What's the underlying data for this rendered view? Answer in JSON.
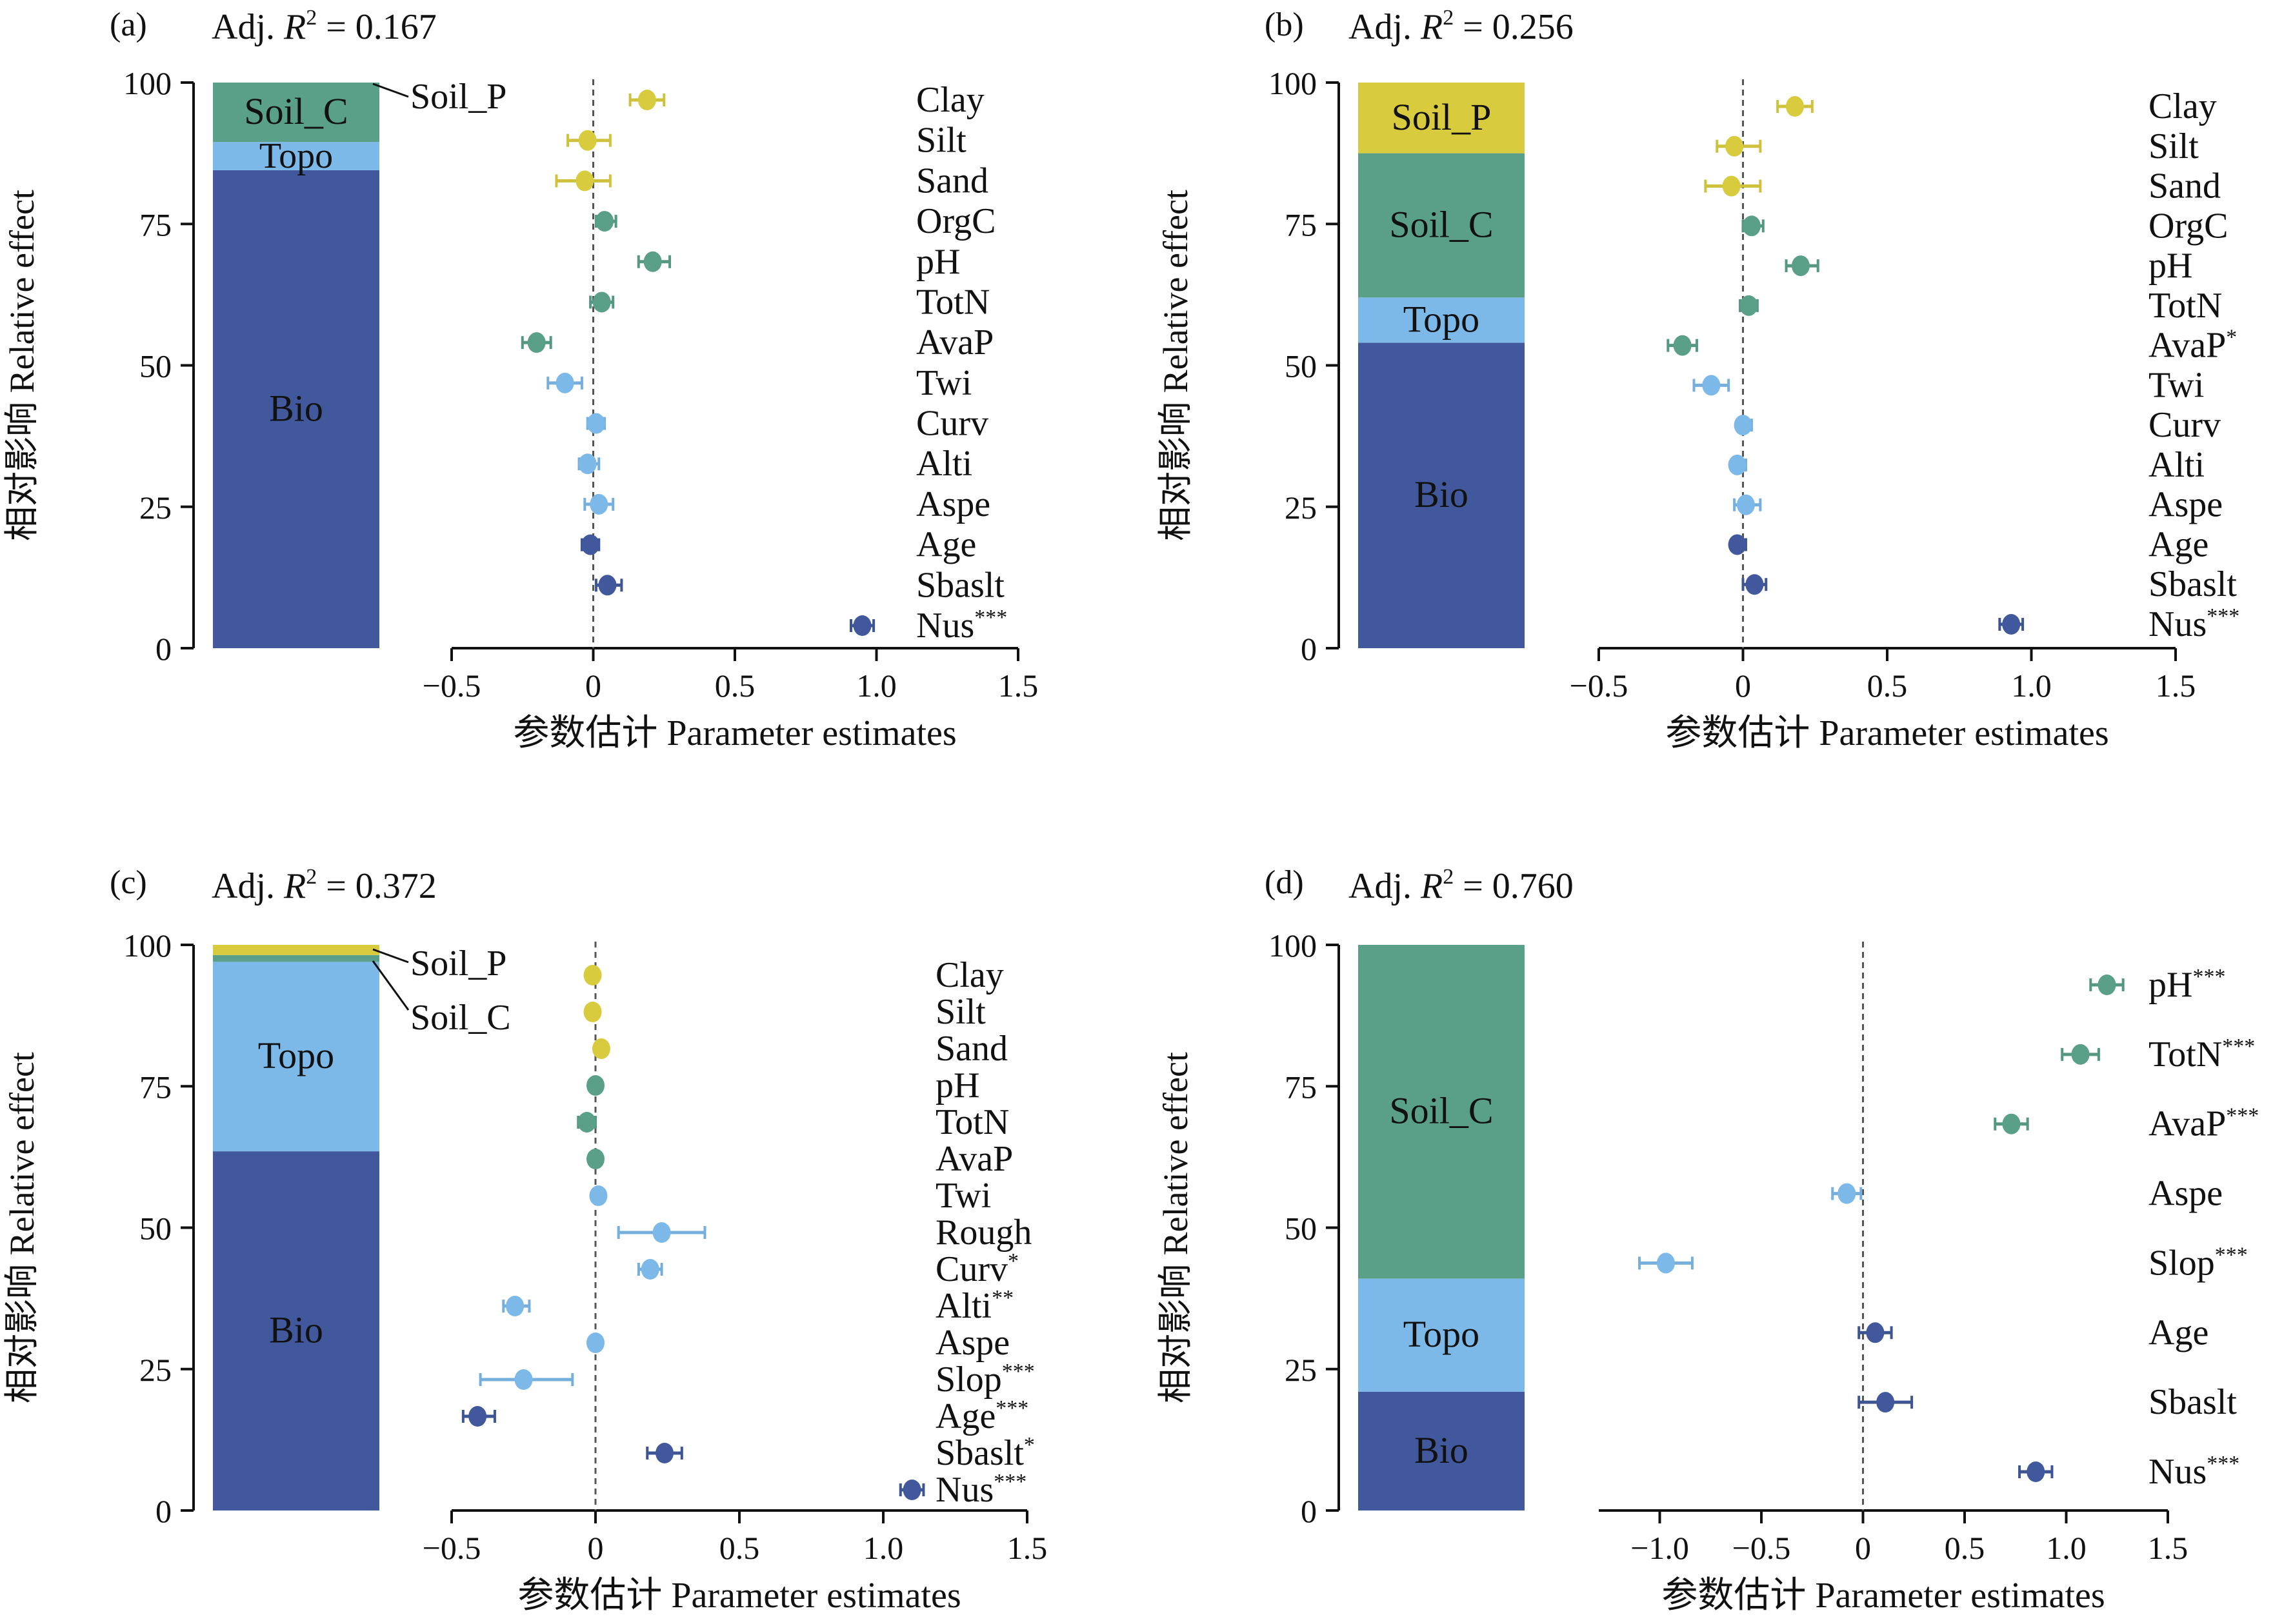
{
  "colors": {
    "Bio": "#41599c",
    "Topo": "#7cb8e8",
    "Soil_C": "#5a9f88",
    "Soil_P": "#d9cb3e",
    "axis": "#111111"
  },
  "chart_data": [
    {
      "type": "stacked-bar + dot-and-whisker",
      "panel_label": "(a)",
      "r2_label": {
        "prefix": "Adj. ",
        "symbol": "R",
        "sup": "2",
        "value": " = 0.167"
      },
      "ylabel": "相对影响 Relative effect",
      "xlabel": "参数估计 Parameter estimates",
      "ylim": [
        0,
        100
      ],
      "yticks": [
        "0",
        "25",
        "50",
        "75",
        "100"
      ],
      "xlim": [
        -0.5,
        1.5
      ],
      "xticks": [
        {
          "value": -0.5,
          "label": "−0.5"
        },
        {
          "value": 0,
          "label": "0"
        },
        {
          "value": 0.5,
          "label": "0.5"
        },
        {
          "value": 1,
          "label": "1.0"
        },
        {
          "value": 1.5,
          "label": "1.5"
        }
      ],
      "stack": [
        {
          "group": "Bio",
          "value": 84.5,
          "label": "Bio"
        },
        {
          "group": "Topo",
          "value": 5,
          "label": "Topo"
        },
        {
          "group": "Soil_C",
          "value": 10.5,
          "label": "Soil_C"
        },
        {
          "group": "Soil_P",
          "value": 0,
          "label": "Soil_P",
          "callout": true
        }
      ],
      "estimates": [
        {
          "label": "Clay",
          "sig": "",
          "group": "Soil_P",
          "value": 0.19,
          "lo": 0.13,
          "hi": 0.25
        },
        {
          "label": "Silt",
          "sig": "",
          "group": "Soil_P",
          "value": -0.02,
          "lo": -0.09,
          "hi": 0.06
        },
        {
          "label": "Sand",
          "sig": "",
          "group": "Soil_P",
          "value": -0.03,
          "lo": -0.13,
          "hi": 0.06
        },
        {
          "label": "OrgC",
          "sig": "",
          "group": "Soil_C",
          "value": 0.04,
          "lo": 0.01,
          "hi": 0.08
        },
        {
          "label": "pH",
          "sig": "",
          "group": "Soil_C",
          "value": 0.21,
          "lo": 0.16,
          "hi": 0.27
        },
        {
          "label": "TotN",
          "sig": "",
          "group": "Soil_C",
          "value": 0.03,
          "lo": -0.01,
          "hi": 0.07
        },
        {
          "label": "AvaP",
          "sig": "",
          "group": "Soil_C",
          "value": -0.2,
          "lo": -0.25,
          "hi": -0.15
        },
        {
          "label": "Twi",
          "sig": "",
          "group": "Topo",
          "value": -0.1,
          "lo": -0.16,
          "hi": -0.04
        },
        {
          "label": "Curv",
          "sig": "",
          "group": "Topo",
          "value": 0.01,
          "lo": -0.02,
          "hi": 0.04
        },
        {
          "label": "Alti",
          "sig": "",
          "group": "Topo",
          "value": -0.02,
          "lo": -0.05,
          "hi": 0.02
        },
        {
          "label": "Aspe",
          "sig": "",
          "group": "Topo",
          "value": 0.02,
          "lo": -0.03,
          "hi": 0.07
        },
        {
          "label": "Age",
          "sig": "",
          "group": "Bio",
          "value": -0.01,
          "lo": -0.04,
          "hi": 0.02
        },
        {
          "label": "Sbaslt",
          "sig": "",
          "group": "Bio",
          "value": 0.05,
          "lo": 0.01,
          "hi": 0.1
        },
        {
          "label": "Nus",
          "sig": "***",
          "group": "Bio",
          "value": 0.95,
          "lo": 0.91,
          "hi": 0.99
        }
      ]
    },
    {
      "type": "stacked-bar + dot-and-whisker",
      "panel_label": "(b)",
      "r2_label": {
        "prefix": "Adj. ",
        "symbol": "R",
        "sup": "2",
        "value": " = 0.256"
      },
      "ylabel": "相对影响 Relative effect",
      "xlabel": "参数估计 Parameter estimates",
      "ylim": [
        0,
        100
      ],
      "yticks": [
        "0",
        "25",
        "50",
        "75",
        "100"
      ],
      "xlim": [
        -0.5,
        1.5
      ],
      "xticks": [
        {
          "value": -0.5,
          "label": "−0.5"
        },
        {
          "value": 0,
          "label": "0"
        },
        {
          "value": 0.5,
          "label": "0.5"
        },
        {
          "value": 1,
          "label": "1.0"
        },
        {
          "value": 1.5,
          "label": "1.5"
        }
      ],
      "stack": [
        {
          "group": "Bio",
          "value": 54,
          "label": "Bio"
        },
        {
          "group": "Topo",
          "value": 8,
          "label": "Topo"
        },
        {
          "group": "Soil_C",
          "value": 25.5,
          "label": "Soil_C"
        },
        {
          "group": "Soil_P",
          "value": 12.5,
          "label": "Soil_P"
        }
      ],
      "estimates": [
        {
          "label": "Clay",
          "sig": "",
          "group": "Soil_P",
          "value": 0.18,
          "lo": 0.12,
          "hi": 0.24
        },
        {
          "label": "Silt",
          "sig": "",
          "group": "Soil_P",
          "value": -0.03,
          "lo": -0.09,
          "hi": 0.06
        },
        {
          "label": "Sand",
          "sig": "",
          "group": "Soil_P",
          "value": -0.04,
          "lo": -0.13,
          "hi": 0.06
        },
        {
          "label": "OrgC",
          "sig": "",
          "group": "Soil_C",
          "value": 0.03,
          "lo": 0.0,
          "hi": 0.07
        },
        {
          "label": "pH",
          "sig": "",
          "group": "Soil_C",
          "value": 0.2,
          "lo": 0.15,
          "hi": 0.26
        },
        {
          "label": "TotN",
          "sig": "",
          "group": "Soil_C",
          "value": 0.02,
          "lo": -0.01,
          "hi": 0.05
        },
        {
          "label": "AvaP",
          "sig": "*",
          "group": "Soil_C",
          "value": -0.21,
          "lo": -0.26,
          "hi": -0.16
        },
        {
          "label": "Twi",
          "sig": "",
          "group": "Topo",
          "value": -0.11,
          "lo": -0.17,
          "hi": -0.05
        },
        {
          "label": "Curv",
          "sig": "",
          "group": "Topo",
          "value": 0.0,
          "lo": -0.02,
          "hi": 0.03
        },
        {
          "label": "Alti",
          "sig": "",
          "group": "Topo",
          "value": -0.02,
          "lo": -0.04,
          "hi": 0.01
        },
        {
          "label": "Aspe",
          "sig": "",
          "group": "Topo",
          "value": 0.01,
          "lo": -0.03,
          "hi": 0.06
        },
        {
          "label": "Age",
          "sig": "",
          "group": "Bio",
          "value": -0.02,
          "lo": -0.04,
          "hi": 0.01
        },
        {
          "label": "Sbaslt",
          "sig": "",
          "group": "Bio",
          "value": 0.04,
          "lo": 0.0,
          "hi": 0.08
        },
        {
          "label": "Nus",
          "sig": "***",
          "group": "Bio",
          "value": 0.93,
          "lo": 0.89,
          "hi": 0.97
        }
      ]
    },
    {
      "type": "stacked-bar + dot-and-whisker",
      "panel_label": "(c)",
      "r2_label": {
        "prefix": "Adj. ",
        "symbol": "R",
        "sup": "2",
        "value": " = 0.372"
      },
      "ylabel": "相对影响 Relative effect",
      "xlabel": "参数估计 Parameter estimates",
      "ylim": [
        0,
        100
      ],
      "yticks": [
        "0",
        "25",
        "50",
        "75",
        "100"
      ],
      "xlim": [
        -0.5,
        1.5
      ],
      "xticks": [
        {
          "value": -0.5,
          "label": "−0.5"
        },
        {
          "value": 0,
          "label": "0"
        },
        {
          "value": 0.5,
          "label": "0.5"
        },
        {
          "value": 1,
          "label": "1.0"
        },
        {
          "value": 1.5,
          "label": "1.5"
        }
      ],
      "stack": [
        {
          "group": "Bio",
          "value": 63.5,
          "label": "Bio"
        },
        {
          "group": "Topo",
          "value": 33.5,
          "label": "Topo"
        },
        {
          "group": "Soil_C",
          "value": 1.2,
          "label": "Soil_C",
          "callout": true
        },
        {
          "group": "Soil_P",
          "value": 1.8,
          "label": "Soil_P",
          "callout": true
        }
      ],
      "estimates": [
        {
          "label": "Clay",
          "sig": "",
          "group": "Soil_P",
          "value": -0.01,
          "lo": -0.03,
          "hi": 0.01
        },
        {
          "label": "Silt",
          "sig": "",
          "group": "Soil_P",
          "value": -0.01,
          "lo": -0.03,
          "hi": 0.01
        },
        {
          "label": "Sand",
          "sig": "",
          "group": "Soil_P",
          "value": 0.02,
          "lo": 0.0,
          "hi": 0.04
        },
        {
          "label": "pH",
          "sig": "",
          "group": "Soil_C",
          "value": 0.0,
          "lo": -0.02,
          "hi": 0.02
        },
        {
          "label": "TotN",
          "sig": "",
          "group": "Soil_C",
          "value": -0.03,
          "lo": -0.06,
          "hi": 0.0
        },
        {
          "label": "AvaP",
          "sig": "",
          "group": "Soil_C",
          "value": 0.0,
          "lo": -0.02,
          "hi": 0.02
        },
        {
          "label": "Twi",
          "sig": "",
          "group": "Topo",
          "value": 0.01,
          "lo": -0.01,
          "hi": 0.03
        },
        {
          "label": "Rough",
          "sig": "",
          "group": "Topo",
          "value": 0.23,
          "lo": 0.08,
          "hi": 0.38
        },
        {
          "label": "Curv",
          "sig": "*",
          "group": "Topo",
          "value": 0.19,
          "lo": 0.15,
          "hi": 0.23
        },
        {
          "label": "Alti",
          "sig": "**",
          "group": "Topo",
          "value": -0.28,
          "lo": -0.32,
          "hi": -0.23
        },
        {
          "label": "Aspe",
          "sig": "",
          "group": "Topo",
          "value": 0.0,
          "lo": -0.02,
          "hi": 0.02
        },
        {
          "label": "Slop",
          "sig": "***",
          "group": "Topo",
          "value": -0.25,
          "lo": -0.4,
          "hi": -0.08
        },
        {
          "label": "Age",
          "sig": "***",
          "group": "Bio",
          "value": -0.41,
          "lo": -0.46,
          "hi": -0.35
        },
        {
          "label": "Sbaslt",
          "sig": "*",
          "group": "Bio",
          "value": 0.24,
          "lo": 0.18,
          "hi": 0.3
        },
        {
          "label": "Nus",
          "sig": "***",
          "group": "Bio",
          "value": 1.1,
          "lo": 1.06,
          "hi": 1.14
        }
      ]
    },
    {
      "type": "stacked-bar + dot-and-whisker",
      "panel_label": "(d)",
      "r2_label": {
        "prefix": "Adj. ",
        "symbol": "R",
        "sup": "2",
        "value": " = 0.760"
      },
      "ylabel": "相对影响 Relative effect",
      "xlabel": "参数估计 Parameter estimates",
      "ylim": [
        0,
        100
      ],
      "yticks": [
        "0",
        "25",
        "50",
        "75",
        "100"
      ],
      "xlim": [
        -1.3,
        1.5
      ],
      "xticks": [
        {
          "value": -1,
          "label": "−1.0"
        },
        {
          "value": -0.5,
          "label": "−0.5"
        },
        {
          "value": 0,
          "label": "0"
        },
        {
          "value": 0.5,
          "label": "0.5"
        },
        {
          "value": 1,
          "label": "1.0"
        },
        {
          "value": 1.5,
          "label": "1.5"
        }
      ],
      "stack": [
        {
          "group": "Bio",
          "value": 21,
          "label": "Bio"
        },
        {
          "group": "Topo",
          "value": 20,
          "label": "Topo"
        },
        {
          "group": "Soil_C",
          "value": 59,
          "label": "Soil_C"
        }
      ],
      "estimates": [
        {
          "label": "pH",
          "sig": "***",
          "group": "Soil_C",
          "value": 1.2,
          "lo": 1.12,
          "hi": 1.28
        },
        {
          "label": "TotN",
          "sig": "***",
          "group": "Soil_C",
          "value": 1.07,
          "lo": 0.98,
          "hi": 1.16
        },
        {
          "label": "AvaP",
          "sig": "***",
          "group": "Soil_C",
          "value": 0.73,
          "lo": 0.65,
          "hi": 0.81
        },
        {
          "label": "Aspe",
          "sig": "",
          "group": "Topo",
          "value": -0.08,
          "lo": -0.15,
          "hi": -0.01
        },
        {
          "label": "Slop",
          "sig": "***",
          "group": "Topo",
          "value": -0.97,
          "lo": -1.1,
          "hi": -0.84
        },
        {
          "label": "Age",
          "sig": "",
          "group": "Bio",
          "value": 0.06,
          "lo": -0.02,
          "hi": 0.14
        },
        {
          "label": "Sbaslt",
          "sig": "",
          "group": "Bio",
          "value": 0.11,
          "lo": -0.02,
          "hi": 0.24
        },
        {
          "label": "Nus",
          "sig": "***",
          "group": "Bio",
          "value": 0.85,
          "lo": 0.77,
          "hi": 0.93
        }
      ]
    }
  ]
}
